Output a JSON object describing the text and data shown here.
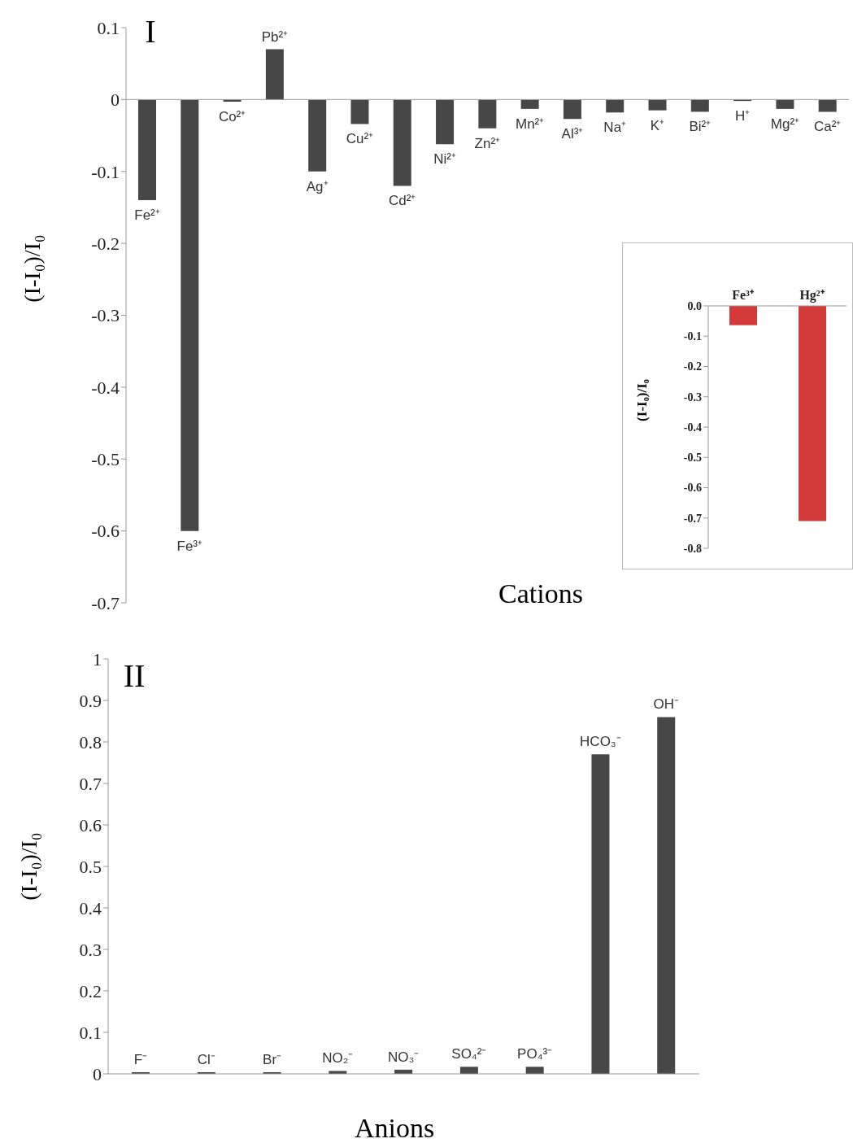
{
  "chart_data": [
    {
      "type": "bar",
      "ylabel": "(I-I₀)/I₀",
      "xlabel": "Cations",
      "annotations": [
        "I"
      ],
      "color": "#474747",
      "categories": [
        "Fe²⁺",
        "Fe³⁺",
        "Co²⁺",
        "Pb²⁺",
        "Ag⁺",
        "Cu²⁺",
        "Cd²⁺",
        "Ni²⁺",
        "Zn²⁺",
        "Mn²⁺",
        "Al³⁺",
        "Na⁺",
        "K⁺",
        "Bi²⁺",
        "H⁺",
        "Mg²⁺",
        "Ca²⁺"
      ],
      "values": [
        -0.14,
        -0.6,
        -0.003,
        0.07,
        -0.1,
        -0.034,
        -0.12,
        -0.062,
        -0.04,
        -0.013,
        -0.027,
        -0.018,
        -0.015,
        -0.017,
        -0.002,
        -0.013,
        -0.017
      ],
      "ylim": [
        -0.7,
        0.1
      ],
      "yticks": [
        0.1,
        0,
        -0.1,
        -0.2,
        -0.3,
        -0.4,
        -0.5,
        -0.6,
        -0.7
      ],
      "grid": false
    },
    {
      "type": "bar",
      "ylabel": "(I-I₀)/I₀",
      "color": "#d43a3a",
      "categories": [
        "Fe³⁺",
        "Hg²⁺"
      ],
      "values": [
        -0.064,
        -0.71
      ],
      "ylim": [
        -0.8,
        0
      ],
      "yticks": [
        {
          "value": 0,
          "label": "0.0"
        },
        -0.1,
        -0.2,
        -0.3,
        -0.4,
        -0.5,
        -0.6,
        -0.7,
        -0.8
      ],
      "grid": false
    },
    {
      "type": "bar",
      "ylabel": "(I-I₀)/I₀",
      "xlabel": "Anions",
      "annotations": [
        "II"
      ],
      "color": "#474747",
      "categories": [
        "F⁻",
        "Cl⁻",
        "Br⁻",
        "NO₂⁻",
        "NO₃⁻",
        "SO₄²⁻",
        "PO₄³⁻",
        "HCO₃⁻",
        "OH⁻"
      ],
      "values": [
        0.004,
        0.004,
        0.004,
        0.007,
        0.01,
        0.017,
        0.017,
        0.77,
        0.86
      ],
      "ylim": [
        0,
        1
      ],
      "yticks": [
        0,
        0.1,
        0.2,
        0.3,
        0.4,
        0.5,
        0.6,
        0.7,
        0.8,
        0.9,
        1
      ],
      "grid": false
    }
  ]
}
